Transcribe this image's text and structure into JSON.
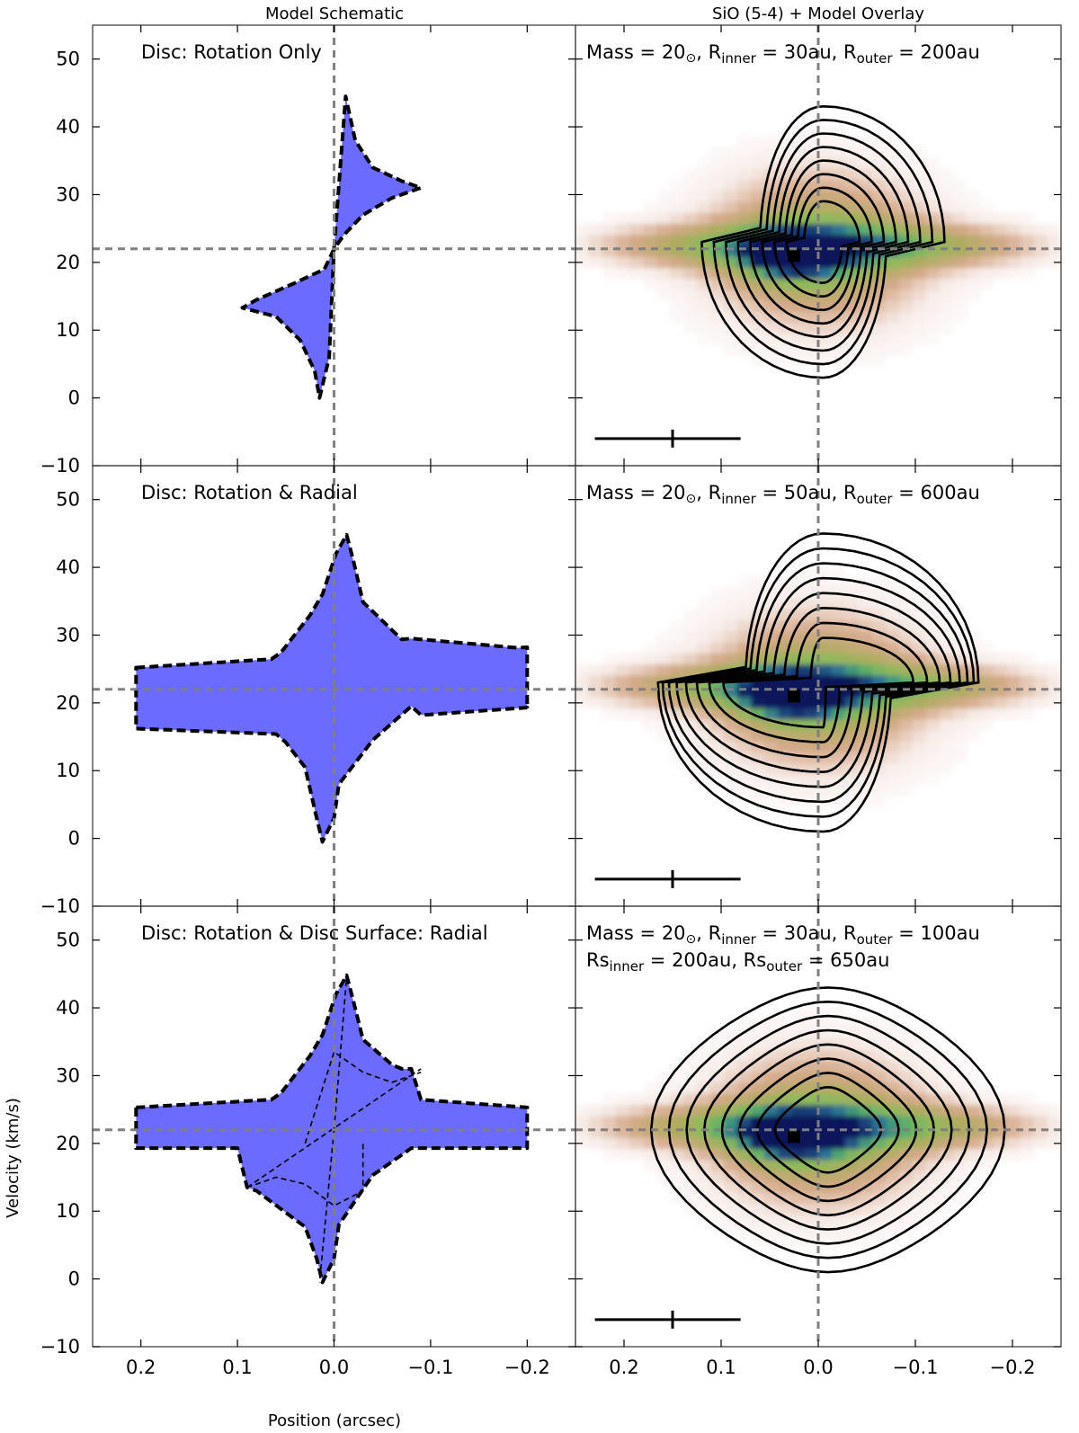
{
  "column_titles": {
    "left": "Model Schematic",
    "right": "SiO (5-4) + Model Overlay"
  },
  "colors": {
    "schematic_fill": "#6b6bff",
    "guide_line": "#808080",
    "contour": "#000000"
  },
  "chart_data": {
    "type": "multi-panel",
    "xlabel": "Position (arcsec)",
    "ylabel": "Velocity (km/s)",
    "xlim": [
      0.25,
      -0.25
    ],
    "ylim": [
      -10,
      55
    ],
    "x_reversed": true,
    "xticks": [
      0.2,
      0.1,
      0.0,
      -0.1,
      -0.2
    ],
    "xtick_labels": [
      "0.2",
      "0.1",
      "0.0",
      "−0.1",
      "−0.2"
    ],
    "yticks": [
      -10,
      0,
      10,
      20,
      30,
      40,
      50
    ],
    "ytick_labels": [
      "−10",
      "0",
      "10",
      "20",
      "30",
      "40",
      "50"
    ],
    "guides": {
      "systemic_velocity": 22,
      "center_position": 0.0
    },
    "scale_bar": {
      "x_range": [
        0.23,
        0.08
      ],
      "velocity": -6,
      "tick_position": 0.15
    },
    "peak_marker": {
      "position": 0.025,
      "velocity": 21
    },
    "panels": [
      {
        "schematic_label": "Disc: Rotation Only",
        "overlay_label": {
          "pre": "Mass = 20",
          "sun": "⊙",
          "rin_pre": ", R",
          "rin_sub": "inner",
          "rin_val": " = 30au, R",
          "rout_sub": "outer",
          "rout_val": " = 200au"
        },
        "overlay_label2": null,
        "schematic_shape": "rotation",
        "model": {
          "mass": 20,
          "r_inner_au": 30,
          "r_outer_au": 200
        }
      },
      {
        "schematic_label": "Disc: Rotation & Radial",
        "overlay_label": {
          "pre": "Mass = 20",
          "sun": "⊙",
          "rin_pre": ", R",
          "rin_sub": "inner",
          "rin_val": " = 50au, R",
          "rout_sub": "outer",
          "rout_val": " = 600au"
        },
        "overlay_label2": null,
        "schematic_shape": "rotation_radial",
        "model": {
          "mass": 20,
          "r_inner_au": 50,
          "r_outer_au": 600
        }
      },
      {
        "schematic_label": "Disc: Rotation & Disc Surface: Radial",
        "overlay_label": {
          "pre": "Mass = 20",
          "sun": "⊙",
          "rin_pre": ", R",
          "rin_sub": "inner",
          "rin_val": " = 30au, R",
          "rout_sub": "outer",
          "rout_val": " = 100au"
        },
        "overlay_label2": {
          "a": "Rs",
          "a_sub": "inner",
          "a_val": " = 200au, Rs",
          "b_sub": "outer",
          "b_val": " = 650au"
        },
        "schematic_shape": "rotation_surface",
        "model": {
          "mass": 20,
          "r_inner_au": 30,
          "r_outer_au": 100,
          "rs_inner_au": 200,
          "rs_outer_au": 650
        }
      }
    ]
  }
}
